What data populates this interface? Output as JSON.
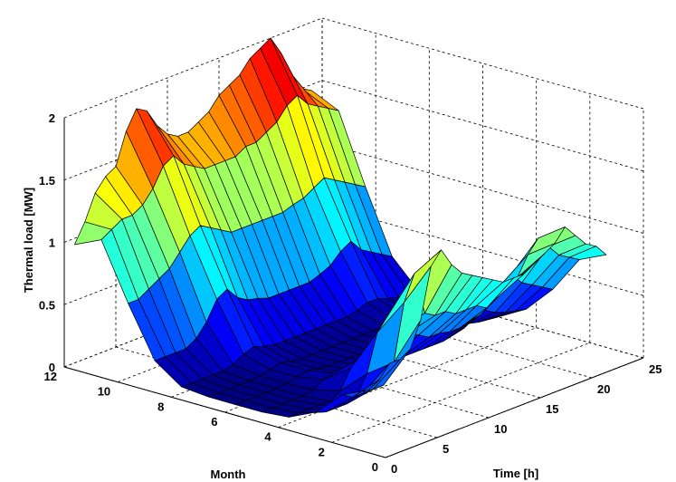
{
  "chart_data": {
    "type": "surface3d",
    "title": "",
    "xlabel": "Time [h]",
    "ylabel": "Month",
    "zlabel": "Thermal load [MW]",
    "xlim": [
      0,
      25
    ],
    "ylim": [
      0,
      12
    ],
    "zlim": [
      0,
      2
    ],
    "xticks": [
      "0",
      "5",
      "10",
      "15",
      "20",
      "25"
    ],
    "yticks": [
      "0",
      "2",
      "4",
      "6",
      "8",
      "10",
      "12"
    ],
    "zticks": [
      "0",
      "0.5",
      "1",
      "1.5",
      "2"
    ],
    "grid": true,
    "colormap": "jet",
    "months": [
      1,
      2,
      3,
      4,
      5,
      6,
      7,
      8,
      9,
      10,
      11,
      12
    ],
    "hours": [
      1,
      2,
      3,
      4,
      5,
      6,
      7,
      8,
      9,
      10,
      11,
      12,
      13,
      14,
      15,
      16,
      17,
      18,
      19,
      20,
      21,
      22,
      23,
      24
    ],
    "z": [
      [
        0.45,
        0.5,
        0.6,
        0.6,
        0.65,
        0.85,
        1.25,
        1.35,
        1.2,
        1.1,
        1.05,
        1.0,
        0.95,
        0.9,
        0.9,
        0.9,
        0.95,
        1.0,
        1.05,
        1.15,
        1.05,
        0.95,
        0.9,
        0.8
      ],
      [
        0.35,
        0.3,
        0.3,
        0.3,
        0.3,
        0.45,
        0.9,
        1.1,
        0.75,
        0.7,
        0.7,
        0.65,
        0.65,
        0.65,
        0.6,
        0.65,
        0.7,
        0.75,
        0.9,
        1.0,
        0.9,
        0.8,
        0.75,
        0.7
      ],
      [
        0.15,
        0.12,
        0.12,
        0.12,
        0.15,
        0.3,
        0.6,
        0.7,
        0.55,
        0.5,
        0.45,
        0.4,
        0.4,
        0.38,
        0.38,
        0.4,
        0.42,
        0.5,
        0.6,
        0.65,
        0.55,
        0.5,
        0.45,
        0.4
      ],
      [
        0.05,
        0.05,
        0.05,
        0.05,
        0.05,
        0.1,
        0.25,
        0.3,
        0.25,
        0.22,
        0.2,
        0.18,
        0.18,
        0.18,
        0.18,
        0.18,
        0.2,
        0.22,
        0.28,
        0.3,
        0.25,
        0.22,
        0.2,
        0.18
      ],
      [
        0.03,
        0.03,
        0.03,
        0.03,
        0.03,
        0.05,
        0.1,
        0.12,
        0.1,
        0.08,
        0.08,
        0.08,
        0.08,
        0.08,
        0.08,
        0.08,
        0.08,
        0.1,
        0.1,
        0.12,
        0.1,
        0.08,
        0.07,
        0.06
      ],
      [
        0.03,
        0.03,
        0.03,
        0.03,
        0.03,
        0.04,
        0.06,
        0.08,
        0.06,
        0.05,
        0.05,
        0.05,
        0.05,
        0.05,
        0.05,
        0.05,
        0.05,
        0.06,
        0.07,
        0.07,
        0.06,
        0.05,
        0.04,
        0.04
      ],
      [
        0.03,
        0.03,
        0.03,
        0.03,
        0.03,
        0.04,
        0.06,
        0.08,
        0.06,
        0.05,
        0.05,
        0.05,
        0.05,
        0.05,
        0.05,
        0.05,
        0.05,
        0.06,
        0.07,
        0.07,
        0.06,
        0.05,
        0.04,
        0.04
      ],
      [
        0.05,
        0.05,
        0.05,
        0.05,
        0.05,
        0.07,
        0.12,
        0.15,
        0.12,
        0.1,
        0.1,
        0.1,
        0.1,
        0.1,
        0.1,
        0.1,
        0.1,
        0.12,
        0.15,
        0.15,
        0.12,
        0.1,
        0.1,
        0.08
      ],
      [
        0.2,
        0.2,
        0.2,
        0.2,
        0.25,
        0.35,
        0.5,
        0.55,
        0.45,
        0.4,
        0.38,
        0.35,
        0.35,
        0.35,
        0.35,
        0.35,
        0.38,
        0.42,
        0.5,
        0.55,
        0.45,
        0.4,
        0.35,
        0.3
      ],
      [
        0.6,
        0.6,
        0.65,
        0.7,
        0.75,
        0.85,
        0.95,
        1.0,
        0.95,
        0.9,
        0.85,
        0.85,
        0.85,
        0.85,
        0.85,
        0.85,
        0.88,
        0.9,
        0.95,
        1.0,
        0.95,
        0.9,
        0.85,
        0.8
      ],
      [
        1.05,
        1.1,
        1.15,
        1.15,
        1.2,
        1.3,
        1.45,
        1.5,
        1.4,
        1.35,
        1.3,
        1.3,
        1.3,
        1.3,
        1.35,
        1.35,
        1.4,
        1.45,
        1.55,
        1.6,
        1.5,
        1.45,
        1.4,
        1.35
      ],
      [
        0.95,
        1.1,
        1.3,
        1.4,
        1.45,
        1.7,
        1.85,
        1.8,
        1.65,
        1.55,
        1.5,
        1.5,
        1.55,
        1.6,
        1.7,
        1.75,
        1.8,
        1.9,
        1.95,
        2.0,
        1.85,
        1.65,
        1.5,
        1.45
      ]
    ]
  }
}
